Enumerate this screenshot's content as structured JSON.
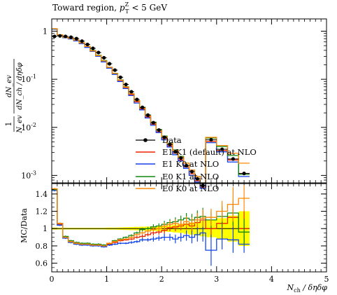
{
  "chart_data": [
    {
      "type": "line",
      "title": "Toward region, p_T^Z < 5 GeV",
      "title_parts": {
        "prefix": "Toward region, ",
        "var": "p",
        "sub": "T",
        "sup": "Z",
        "suffix": " < 5 GeV"
      },
      "ylabel": "1/N_ev dN_ev/dN_ch/dηδφ",
      "ylabel_parts": {
        "frac1_num": "1",
        "frac1_den": "N_ev",
        "frac2_num": "dN_ev",
        "frac2_den": "dN_ch / dηδφ"
      },
      "yscale": "log",
      "ylim": [
        0.0007,
        1.8
      ],
      "xlim": [
        0,
        5
      ],
      "ytick_labels": [
        "10^-3",
        "10^-2",
        "10^-1",
        "1"
      ],
      "legend_position": "center",
      "x_edges": [
        0,
        0.1,
        0.2,
        0.3,
        0.4,
        0.5,
        0.6,
        0.7,
        0.8,
        0.9,
        1.0,
        1.1,
        1.2,
        1.3,
        1.4,
        1.5,
        1.6,
        1.7,
        1.8,
        1.9,
        2.0,
        2.1,
        2.2,
        2.3,
        2.4,
        2.5,
        2.6,
        2.7,
        2.8,
        3.0,
        3.2,
        3.4,
        3.6
      ],
      "data": {
        "name": "Data",
        "x": [
          0.05,
          0.15,
          0.25,
          0.35,
          0.45,
          0.55,
          0.65,
          0.75,
          0.85,
          0.95,
          1.05,
          1.15,
          1.25,
          1.35,
          1.45,
          1.55,
          1.65,
          1.75,
          1.85,
          1.95,
          2.05,
          2.15,
          2.25,
          2.35,
          2.45,
          2.55,
          2.65,
          2.75,
          2.9,
          3.1,
          3.3,
          3.5
        ],
        "y": [
          0.78,
          0.8,
          0.78,
          0.75,
          0.7,
          0.62,
          0.53,
          0.44,
          0.36,
          0.28,
          0.21,
          0.155,
          0.11,
          0.078,
          0.055,
          0.038,
          0.026,
          0.018,
          0.0125,
          0.0088,
          0.0062,
          0.0044,
          0.0031,
          0.0023,
          0.0016,
          0.0012,
          0.00085,
          0.00062,
          0.0055,
          0.0035,
          0.0022,
          0.0011
        ]
      },
      "series": [
        {
          "name": "E1 K1 (default) at NLO",
          "color": "#ee2200",
          "values": [
            1.12,
            0.83,
            0.74,
            0.7,
            0.64,
            0.56,
            0.47,
            0.39,
            0.31,
            0.24,
            0.175,
            0.13,
            0.094,
            0.067,
            0.048,
            0.034,
            0.024,
            0.0165,
            0.0116,
            0.0081,
            0.0058,
            0.0041,
            0.0029,
            0.0021,
            0.0015,
            0.00108,
            0.00078,
            0.00057,
            0.0051,
            0.0033,
            0.0021,
            0.0011
          ]
        },
        {
          "name": "E1 K0 at NLO",
          "color": "#1144ee",
          "values": [
            1.1,
            0.82,
            0.73,
            0.69,
            0.63,
            0.55,
            0.46,
            0.38,
            0.3,
            0.23,
            0.17,
            0.126,
            0.09,
            0.064,
            0.046,
            0.032,
            0.023,
            0.0157,
            0.011,
            0.0078,
            0.0055,
            0.0039,
            0.0027,
            0.002,
            0.0014,
            0.001,
            0.00073,
            0.00054,
            0.0048,
            0.0031,
            0.0019,
            0.00095
          ]
        },
        {
          "name": "E0 K1 at NLO",
          "color": "#118811",
          "values": [
            1.12,
            0.84,
            0.75,
            0.71,
            0.65,
            0.57,
            0.48,
            0.395,
            0.315,
            0.245,
            0.178,
            0.133,
            0.097,
            0.07,
            0.05,
            0.036,
            0.026,
            0.018,
            0.0128,
            0.009,
            0.0066,
            0.0047,
            0.0034,
            0.0025,
            0.0018,
            0.0013,
            0.00095,
            0.0007,
            0.006,
            0.004,
            0.0026,
            0.00105
          ]
        },
        {
          "name": "E0 K0 at NLO",
          "color": "#ff8800",
          "values": [
            1.13,
            0.84,
            0.75,
            0.71,
            0.65,
            0.57,
            0.48,
            0.39,
            0.31,
            0.24,
            0.178,
            0.132,
            0.096,
            0.069,
            0.05,
            0.036,
            0.025,
            0.0175,
            0.0125,
            0.0088,
            0.0064,
            0.0046,
            0.0033,
            0.0024,
            0.0018,
            0.0013,
            0.00095,
            0.0007,
            0.0062,
            0.0042,
            0.0029,
            0.0018
          ]
        }
      ]
    },
    {
      "type": "line",
      "ylabel": "MC/Data",
      "xlabel": "N_ch / δηδφ",
      "xlabel_parts": {
        "var": "N",
        "sub": "ch",
        "rest": " / δηδφ"
      },
      "xlim": [
        0,
        5
      ],
      "ylim": [
        0.5,
        1.52
      ],
      "x_ticks": [
        "0",
        "1",
        "2",
        "3",
        "4",
        "5"
      ],
      "y_ticks": [
        "0.6",
        "0.8",
        "1",
        "1.2",
        "1.4"
      ],
      "band_color": "#ffff00",
      "band_halfwidth": [
        0.012,
        0.01,
        0.01,
        0.01,
        0.01,
        0.01,
        0.01,
        0.01,
        0.01,
        0.01,
        0.012,
        0.012,
        0.014,
        0.016,
        0.018,
        0.02,
        0.022,
        0.024,
        0.026,
        0.03,
        0.034,
        0.038,
        0.045,
        0.05,
        0.06,
        0.07,
        0.08,
        0.09,
        0.1,
        0.12,
        0.15,
        0.2
      ],
      "series": [
        {
          "name": "E1 K1 (default) at NLO",
          "color": "#ee2200",
          "values": [
            1.45,
            1.05,
            0.9,
            0.85,
            0.83,
            0.82,
            0.82,
            0.81,
            0.81,
            0.8,
            0.82,
            0.84,
            0.86,
            0.87,
            0.88,
            0.9,
            0.91,
            0.93,
            0.95,
            0.96,
            0.98,
            1.01,
            1.02,
            1.03,
            1.05,
            1.03,
            1.07,
            1.1,
            1.0,
            1.06,
            1.13,
            1.0
          ],
          "errors": [
            0.01,
            0.01,
            0.01,
            0.01,
            0.01,
            0.01,
            0.01,
            0.01,
            0.01,
            0.01,
            0.01,
            0.01,
            0.01,
            0.01,
            0.015,
            0.015,
            0.02,
            0.02,
            0.03,
            0.03,
            0.04,
            0.04,
            0.05,
            0.05,
            0.06,
            0.07,
            0.08,
            0.1,
            0.1,
            0.12,
            0.15,
            0.2
          ]
        },
        {
          "name": "E1 K0 at NLO",
          "color": "#1144ee",
          "values": [
            1.44,
            1.04,
            0.89,
            0.84,
            0.82,
            0.81,
            0.81,
            0.8,
            0.8,
            0.79,
            0.81,
            0.82,
            0.83,
            0.83,
            0.84,
            0.85,
            0.87,
            0.87,
            0.88,
            0.89,
            0.9,
            0.9,
            0.88,
            0.9,
            0.92,
            0.9,
            0.93,
            0.95,
            0.75,
            0.88,
            0.87,
            0.82
          ],
          "errors": [
            0.01,
            0.01,
            0.01,
            0.01,
            0.01,
            0.01,
            0.01,
            0.01,
            0.01,
            0.01,
            0.01,
            0.01,
            0.01,
            0.01,
            0.015,
            0.015,
            0.02,
            0.02,
            0.03,
            0.03,
            0.04,
            0.04,
            0.05,
            0.05,
            0.06,
            0.07,
            0.08,
            0.1,
            0.18,
            0.12,
            0.15,
            0.1
          ]
        },
        {
          "name": "E0 K1 at NLO",
          "color": "#118811",
          "values": [
            1.45,
            1.06,
            0.91,
            0.86,
            0.84,
            0.83,
            0.83,
            0.82,
            0.82,
            0.81,
            0.83,
            0.86,
            0.88,
            0.9,
            0.92,
            0.95,
            0.99,
            1.0,
            1.02,
            1.03,
            1.05,
            1.07,
            1.08,
            1.1,
            1.12,
            1.1,
            1.13,
            1.14,
            1.1,
            1.14,
            1.18,
            0.96
          ],
          "errors": [
            0.01,
            0.01,
            0.01,
            0.01,
            0.01,
            0.01,
            0.01,
            0.01,
            0.01,
            0.01,
            0.01,
            0.01,
            0.01,
            0.01,
            0.015,
            0.015,
            0.02,
            0.02,
            0.03,
            0.03,
            0.04,
            0.04,
            0.05,
            0.05,
            0.06,
            0.07,
            0.08,
            0.1,
            0.1,
            0.12,
            0.15,
            0.15
          ]
        },
        {
          "name": "E0 K0 at NLO",
          "color": "#ff8800",
          "values": [
            1.46,
            1.06,
            0.9,
            0.85,
            0.83,
            0.82,
            0.82,
            0.81,
            0.81,
            0.8,
            0.83,
            0.85,
            0.87,
            0.88,
            0.9,
            0.93,
            0.95,
            0.97,
            0.99,
            1.0,
            1.03,
            1.05,
            1.06,
            1.05,
            1.08,
            1.06,
            1.1,
            1.12,
            1.13,
            1.2,
            1.28,
            1.35
          ],
          "errors": [
            0.01,
            0.01,
            0.01,
            0.01,
            0.01,
            0.01,
            0.01,
            0.01,
            0.01,
            0.01,
            0.01,
            0.01,
            0.01,
            0.01,
            0.015,
            0.015,
            0.02,
            0.02,
            0.03,
            0.03,
            0.04,
            0.04,
            0.05,
            0.05,
            0.06,
            0.07,
            0.08,
            0.1,
            0.1,
            0.12,
            0.2,
            0.15
          ]
        }
      ]
    }
  ]
}
